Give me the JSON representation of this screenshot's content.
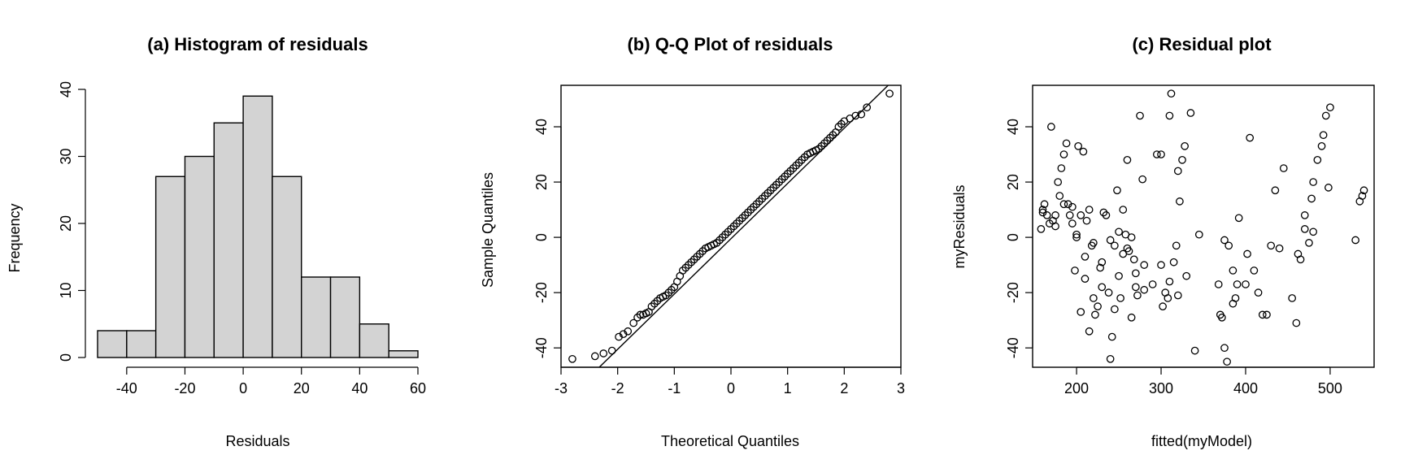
{
  "colors": {
    "bar_fill": "#d3d3d3",
    "stroke": "#000000",
    "background": "#ffffff"
  },
  "chart_data": [
    {
      "type": "bar",
      "title": "(a) Histogram of residuals",
      "xlabel": "Residuals",
      "ylabel": "Frequency",
      "bins": [
        [
          -50,
          -40
        ],
        [
          -40,
          -30
        ],
        [
          -30,
          -20
        ],
        [
          -20,
          -10
        ],
        [
          -10,
          0
        ],
        [
          0,
          10
        ],
        [
          10,
          20
        ],
        [
          20,
          30
        ],
        [
          30,
          40
        ],
        [
          40,
          50
        ],
        [
          50,
          60
        ]
      ],
      "values": [
        4,
        4,
        27,
        30,
        35,
        39,
        27,
        12,
        12,
        5,
        1
      ],
      "xlim": [
        -50,
        60
      ],
      "ylim": [
        0,
        40
      ],
      "xticks": [
        -40,
        -20,
        0,
        20,
        40,
        60
      ],
      "yticks": [
        0,
        10,
        20,
        30,
        40
      ],
      "grid": false,
      "legend": "none"
    },
    {
      "type": "scatter",
      "title": "(b) Q-Q Plot of residuals",
      "xlabel": "Theoretical Quantiles",
      "ylabel": "Sample Quantiles",
      "xlim": [
        -3,
        3
      ],
      "ylim": [
        -47,
        55
      ],
      "xticks": [
        -3,
        -2,
        -1,
        0,
        1,
        2,
        3
      ],
      "yticks": [
        -40,
        -20,
        0,
        20,
        40
      ],
      "reference_line": {
        "intercept": -0.5,
        "slope": 20
      },
      "x": [
        -2.8,
        -2.4,
        -2.25,
        -2.1,
        -1.98,
        -1.9,
        -1.82,
        -1.72,
        -1.65,
        -1.6,
        -1.55,
        -1.5,
        -1.45,
        -1.4,
        -1.35,
        -1.3,
        -1.25,
        -1.2,
        -1.15,
        -1.1,
        -1.05,
        -1.0,
        -0.95,
        -0.9,
        -0.85,
        -0.8,
        -0.75,
        -0.7,
        -0.65,
        -0.6,
        -0.55,
        -0.5,
        -0.45,
        -0.4,
        -0.35,
        -0.3,
        -0.25,
        -0.2,
        -0.15,
        -0.1,
        -0.05,
        0.0,
        0.05,
        0.1,
        0.15,
        0.2,
        0.25,
        0.3,
        0.35,
        0.4,
        0.45,
        0.5,
        0.55,
        0.6,
        0.65,
        0.7,
        0.75,
        0.8,
        0.85,
        0.9,
        0.95,
        1.0,
        1.05,
        1.1,
        1.15,
        1.2,
        1.25,
        1.3,
        1.35,
        1.4,
        1.45,
        1.5,
        1.55,
        1.6,
        1.65,
        1.7,
        1.75,
        1.8,
        1.85,
        1.9,
        1.95,
        2.0,
        2.1,
        2.2,
        2.3,
        2.4,
        2.8
      ],
      "y": [
        -44,
        -43,
        -42,
        -41,
        -36,
        -35,
        -34,
        -31,
        -29,
        -28,
        -28,
        -27.5,
        -27,
        -25,
        -24,
        -23,
        -22,
        -21.5,
        -21,
        -20,
        -19,
        -18,
        -16,
        -14,
        -12,
        -11,
        -10,
        -9,
        -8,
        -7,
        -6,
        -5,
        -4,
        -3.5,
        -3,
        -2.5,
        -2,
        -1,
        0,
        1,
        2,
        3,
        4,
        5,
        6,
        7,
        8,
        9,
        10,
        11,
        12,
        13,
        14,
        15,
        16,
        17,
        18,
        19,
        20,
        21,
        22,
        23,
        24,
        25,
        26,
        27,
        28,
        29,
        30,
        30.5,
        31,
        31.5,
        32,
        33,
        34,
        35,
        36,
        37,
        38,
        40,
        41,
        42,
        43,
        44,
        44.5,
        47,
        52
      ],
      "grid": false,
      "legend": "none"
    },
    {
      "type": "scatter",
      "title": "(c) Residual plot",
      "xlabel": "fitted(myModel)",
      "ylabel": "myResiduals",
      "xlim": [
        148,
        552
      ],
      "ylim": [
        -47,
        55
      ],
      "xticks": [
        200,
        300,
        400,
        500
      ],
      "yticks": [
        -40,
        -20,
        0,
        20,
        40
      ],
      "x": [
        158,
        160,
        162,
        165,
        168,
        170,
        172,
        175,
        178,
        180,
        182,
        185,
        188,
        190,
        192,
        195,
        198,
        200,
        202,
        205,
        208,
        210,
        212,
        215,
        218,
        220,
        222,
        225,
        228,
        230,
        232,
        235,
        238,
        240,
        242,
        245,
        248,
        250,
        252,
        255,
        258,
        260,
        262,
        265,
        268,
        270,
        272,
        275,
        278,
        280,
        290,
        295,
        300,
        302,
        305,
        308,
        310,
        312,
        315,
        318,
        320,
        322,
        325,
        328,
        330,
        335,
        340,
        345,
        368,
        370,
        372,
        375,
        378,
        380,
        385,
        388,
        390,
        392,
        400,
        402,
        405,
        410,
        415,
        420,
        425,
        430,
        435,
        440,
        445,
        455,
        460,
        462,
        465,
        470,
        475,
        478,
        480,
        485,
        490,
        492,
        495,
        498,
        500,
        530,
        535,
        538,
        540,
        160,
        175,
        185,
        200,
        210,
        220,
        230,
        240,
        250,
        260,
        270,
        280,
        195,
        205,
        215,
        245,
        255,
        265,
        300,
        310,
        320,
        375,
        385,
        470,
        480
      ],
      "y": [
        3,
        10,
        12,
        8,
        5,
        40,
        6,
        4,
        20,
        15,
        25,
        30,
        34,
        12,
        8,
        5,
        -12,
        0,
        33,
        -27,
        31,
        -15,
        6,
        -34,
        -3,
        -22,
        -28,
        -25,
        -11,
        -18,
        9,
        8,
        -20,
        -44,
        -36,
        -26,
        17,
        -14,
        -22,
        10,
        1,
        28,
        -5,
        0,
        -8,
        -13,
        -21,
        44,
        21,
        -19,
        -17,
        30,
        30,
        -25,
        -20,
        -22,
        44,
        52,
        -9,
        -3,
        24,
        13,
        28,
        33,
        -14,
        45,
        -41,
        1,
        -17,
        -28,
        -29,
        -40,
        -45,
        -3,
        -24,
        -22,
        -17,
        7,
        -17,
        -6,
        36,
        -12,
        -20,
        -28,
        -28,
        -3,
        17,
        -4,
        25,
        -22,
        -31,
        -6,
        -8,
        3,
        -2,
        14,
        20,
        28,
        33,
        37,
        44,
        18,
        47,
        -1,
        13,
        15,
        17,
        9,
        8,
        12,
        1,
        -7,
        -2,
        -9,
        -1,
        2,
        -4,
        -18,
        -10,
        11,
        8,
        10,
        -3,
        -6,
        -29,
        -10,
        -16,
        -21,
        -1,
        -12,
        8,
        2
      ],
      "grid": false,
      "legend": "none"
    }
  ]
}
